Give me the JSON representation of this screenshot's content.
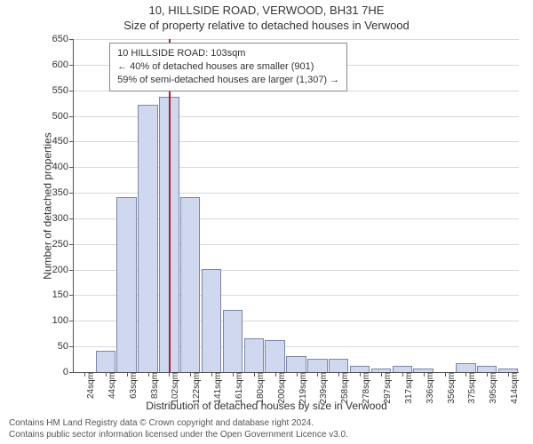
{
  "title_line1": "10, HILLSIDE ROAD, VERWOOD, BH31 7HE",
  "title_line2": "Size of property relative to detached houses in Verwood",
  "ylabel": "Number of detached properties",
  "xlabel": "Distribution of detached houses by size in Verwood",
  "attribution_line1": "Contains HM Land Registry data © Crown copyright and database right 2024.",
  "attribution_line2": "Contains public sector information licensed under the Open Government Licence v3.0.",
  "chart": {
    "type": "histogram",
    "ylim": [
      0,
      650
    ],
    "ytick_step": 50,
    "bar_fill": "#cfd8ef",
    "bar_border": "#7a86a8",
    "grid_color": "#d9d9d9",
    "axis_color": "#555555",
    "bar_width_ratio": 0.94,
    "categories": [
      "24sqm",
      "44sqm",
      "63sqm",
      "83sqm",
      "102sqm",
      "122sqm",
      "141sqm",
      "161sqm",
      "180sqm",
      "200sqm",
      "219sqm",
      "239sqm",
      "258sqm",
      "278sqm",
      "297sqm",
      "317sqm",
      "336sqm",
      "356sqm",
      "375sqm",
      "395sqm",
      "414sqm"
    ],
    "values": [
      0,
      40,
      340,
      520,
      535,
      340,
      200,
      120,
      65,
      60,
      30,
      25,
      25,
      10,
      5,
      10,
      5,
      0,
      15,
      10,
      5
    ],
    "highlight": {
      "bin_index": 4,
      "line_color": "#aa2222",
      "callout_lines": [
        "10 HILLSIDE ROAD: 103sqm",
        "← 40% of detached houses are smaller (901)",
        "59% of semi-detached houses are larger (1,307) →"
      ]
    }
  }
}
